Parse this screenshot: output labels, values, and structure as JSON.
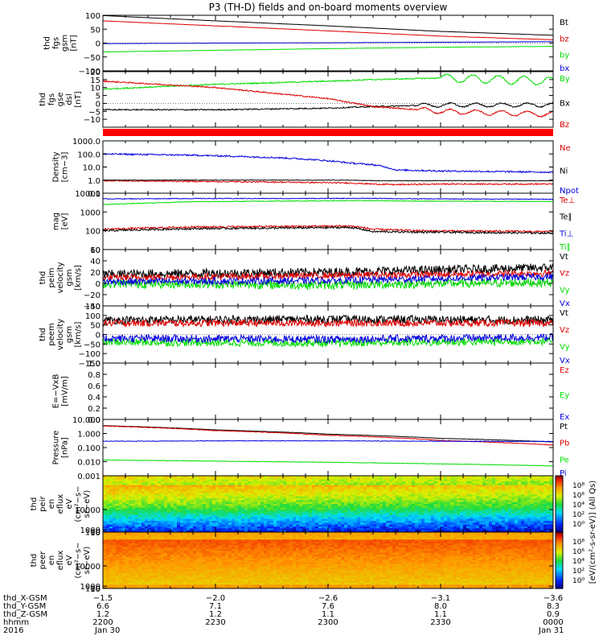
{
  "title": "P3 (TH-D) fields and on-board moments overview",
  "colors": {
    "black": "#000000",
    "red": "#dd0000",
    "green": "#00dd00",
    "blue": "#0000dd",
    "thick_red": "#ff0000"
  },
  "chart_data": [
    {
      "id": "fgs-gsm",
      "type": "line",
      "ylabel": [
        "thd",
        "fgs",
        "gsm",
        "[nT]"
      ],
      "ylim": [
        -100,
        100
      ],
      "yticks": [
        "100",
        "50",
        "0",
        "−50",
        "−100"
      ],
      "ytick_values": [
        100,
        50,
        0,
        -50,
        -100
      ],
      "x": [
        0,
        0.25,
        0.5,
        0.75,
        1
      ],
      "series": [
        {
          "name": "Bt",
          "color": "black",
          "values": [
            99,
            80,
            62,
            42,
            28
          ],
          "noise": 0.3
        },
        {
          "name": "bz",
          "color": "red",
          "values": [
            80,
            62,
            44,
            25,
            12
          ],
          "noise": 0.5
        },
        {
          "name": "by",
          "color": "green",
          "values": [
            -32,
            -26,
            -20,
            -15,
            -12
          ],
          "noise": 0.5
        },
        {
          "name": "bx",
          "color": "blue",
          "values": [
            -2,
            0,
            1,
            3,
            5
          ],
          "noise": 0.5
        }
      ]
    },
    {
      "id": "fgs-gse-dsl",
      "type": "line",
      "ylabel": [
        "thd",
        "fgs",
        "gse",
        "dsl",
        "[nT]"
      ],
      "ylim": [
        -15,
        20
      ],
      "yticks": [
        "20",
        "15",
        "10",
        "5",
        "0",
        "−5",
        "−10"
      ],
      "ytick_values": [
        20,
        15,
        10,
        5,
        0,
        -5,
        -10
      ],
      "x": [
        0,
        0.25,
        0.5,
        0.6,
        0.75,
        1
      ],
      "series": [
        {
          "name": "By",
          "color": "green",
          "values": [
            9,
            12,
            14,
            15,
            16,
            14
          ],
          "noise": 0.4,
          "wave_from": 0.75,
          "wave_amp": 2.5
        },
        {
          "name": "Bx",
          "color": "black",
          "values": [
            -4,
            -4,
            -3,
            -2,
            -1,
            -1
          ],
          "noise": 0.4,
          "wave_from": 0.7,
          "wave_amp": 1.2
        },
        {
          "name": "Bz",
          "color": "red",
          "values": [
            14,
            10,
            3,
            -2,
            -5,
            -7
          ],
          "noise": 0.4,
          "wave_from": 0.7,
          "wave_amp": 1.5
        }
      ]
    },
    {
      "id": "density",
      "type": "line",
      "log": true,
      "ylabel": [
        "Density",
        "[cm−3]"
      ],
      "ylim": [
        0.1,
        1000
      ],
      "yticks": [
        "1000.0",
        "100.0",
        "10.0",
        "1.0",
        "0.1"
      ],
      "ytick_values": [
        1000,
        100,
        10,
        1,
        0.1
      ],
      "x": [
        0,
        0.2,
        0.4,
        0.55,
        0.6,
        0.65,
        0.75,
        1
      ],
      "series": [
        {
          "name": "Ne",
          "color": "red",
          "values": [
            0.9,
            0.8,
            0.7,
            0.6,
            0.5,
            0.45,
            0.5,
            0.5
          ],
          "noise": 0.05
        },
        {
          "name": "Ni",
          "color": "black",
          "values": [
            1.0,
            1.0,
            1.0,
            1.0,
            0.9,
            0.9,
            0.9,
            0.9
          ],
          "noise": 0.02
        },
        {
          "name": "Npot",
          "color": "blue",
          "values": [
            100,
            80,
            50,
            20,
            15,
            6,
            5,
            4
          ],
          "noise": 0.06
        }
      ]
    },
    {
      "id": "temperature",
      "type": "line",
      "log": true,
      "ylabel": [
        "mag ",
        "[eV]"
      ],
      "ylim": [
        10,
        10000
      ],
      "yticks": [
        "10000",
        "1000",
        "100",
        "10"
      ],
      "ytick_values": [
        10000,
        1000,
        100,
        10
      ],
      "x": [
        0,
        0.2,
        0.4,
        0.55,
        0.6,
        0.7,
        1
      ],
      "series": [
        {
          "name": "Te⊥",
          "color": "red",
          "values": [
            120,
            160,
            170,
            180,
            120,
            100,
            90
          ],
          "noise": 0.05
        },
        {
          "name": "Te∥",
          "color": "black",
          "values": [
            100,
            130,
            140,
            150,
            90,
            85,
            75
          ],
          "noise": 0.05
        },
        {
          "name": "Ti⊥",
          "color": "blue",
          "values": [
            5000,
            5200,
            5200,
            5300,
            5300,
            5000,
            4800
          ],
          "noise": 0.02
        },
        {
          "name": "Ti∥",
          "color": "green",
          "values": [
            2500,
            3500,
            3800,
            4000,
            4000,
            3800,
            3600
          ],
          "noise": 0.02
        }
      ]
    },
    {
      "id": "peim-velocity",
      "type": "line",
      "ylabel": [
        "thd",
        "peim",
        "velocity",
        "gsm",
        "[km/s]"
      ],
      "ylim": [
        -40,
        60
      ],
      "yticks": [
        "60",
        "40",
        "20",
        "0",
        "−20",
        "−40"
      ],
      "ytick_values": [
        60,
        40,
        20,
        0,
        -20,
        -40
      ],
      "x": [
        0,
        0.5,
        1
      ],
      "series": [
        {
          "name": "Vt",
          "color": "black",
          "values": [
            16,
            20,
            28
          ],
          "noise": 8
        },
        {
          "name": "Vz",
          "color": "red",
          "values": [
            10,
            14,
            18
          ],
          "noise": 6
        },
        {
          "name": "Vy",
          "color": "green",
          "values": [
            0,
            -3,
            2
          ],
          "noise": 8
        },
        {
          "name": "Vx",
          "color": "blue",
          "values": [
            3,
            5,
            12
          ],
          "noise": 6
        }
      ]
    },
    {
      "id": "peem-velocity",
      "type": "line",
      "ylabel": [
        "thd",
        "peem",
        "velocity",
        "gsm",
        "[km/s]"
      ],
      "ylim": [
        -150,
        150
      ],
      "yticks": [
        "150",
        "100",
        "50",
        "0",
        "−50",
        "−100",
        "−150"
      ],
      "ytick_values": [
        150,
        100,
        50,
        0,
        -50,
        -100,
        -150
      ],
      "x": [
        0,
        0.5,
        1
      ],
      "series": [
        {
          "name": "Vt",
          "color": "black",
          "values": [
            75,
            80,
            75
          ],
          "noise": 22
        },
        {
          "name": "Vz",
          "color": "red",
          "values": [
            60,
            60,
            60
          ],
          "noise": 18
        },
        {
          "name": "Vy",
          "color": "green",
          "values": [
            -40,
            -45,
            -35
          ],
          "noise": 20
        },
        {
          "name": "Vx",
          "color": "blue",
          "values": [
            -20,
            -25,
            -15
          ],
          "noise": 20
        }
      ]
    },
    {
      "id": "efield",
      "type": "line",
      "ylabel": [
        "E=−VxB",
        "[mV/m]"
      ],
      "ylim": [
        0,
        1
      ],
      "yticks": [
        "1.0",
        "0.8",
        "0.6",
        "0.4",
        "0.2",
        "0.0"
      ],
      "ytick_values": [
        1,
        0.8,
        0.6,
        0.4,
        0.2,
        0
      ],
      "x": [],
      "series": [
        {
          "name": "Ez",
          "color": "red",
          "values": []
        },
        {
          "name": "Ey",
          "color": "green",
          "values": []
        },
        {
          "name": "Ex",
          "color": "blue",
          "values": []
        }
      ]
    },
    {
      "id": "pressure",
      "type": "line",
      "log": true,
      "ylabel": [
        "Pressure",
        "[nPa]"
      ],
      "ylim": [
        0.001,
        10
      ],
      "yticks": [
        "10.000",
        "1.000",
        "0.100",
        "0.010",
        "0.001"
      ],
      "ytick_values": [
        10,
        1,
        0.1,
        0.01,
        0.001
      ],
      "x": [
        0,
        0.25,
        0.5,
        0.75,
        1
      ],
      "series": [
        {
          "name": "Pt",
          "color": "black",
          "values": [
            3.6,
            1.8,
            0.9,
            0.45,
            0.25
          ],
          "noise": 0.01
        },
        {
          "name": "Pb",
          "color": "red",
          "values": [
            3.4,
            1.6,
            0.75,
            0.32,
            0.15
          ],
          "noise": 0.02
        },
        {
          "name": "Pe",
          "color": "green",
          "values": [
            0.013,
            0.011,
            0.009,
            0.007,
            0.005
          ],
          "noise": 0.02
        },
        {
          "name": "Pi",
          "color": "blue",
          "values": [
            0.28,
            0.3,
            0.3,
            0.28,
            0.27
          ],
          "noise": 0.02
        }
      ]
    },
    {
      "id": "peir-spectrogram",
      "type": "heatmap",
      "ylabel": [
        "thd",
        "peir",
        "en",
        "eflux",
        "eV",
        "(cm²−s−",
        "sr−eV)"
      ],
      "yticks": [
        "10000",
        "1000",
        "100",
        "10"
      ],
      "ytick_values": [
        10000,
        1000,
        100,
        10
      ],
      "ylim": [
        7,
        25000
      ]
    },
    {
      "id": "peer-spectrogram",
      "type": "heatmap",
      "ylabel": [
        "thd",
        "peer",
        "en",
        "eflux",
        "eV",
        "(cm²−s−",
        "sr−eV)"
      ],
      "yticks": [
        "10000",
        "1000",
        "100",
        "10"
      ],
      "ytick_values": [
        10000,
        1000,
        100,
        10
      ],
      "ylim": [
        7,
        25000
      ]
    }
  ],
  "colorbar": {
    "ticks": [
      "10⁸",
      "10⁶",
      "10⁴",
      "10²",
      "10⁰"
    ],
    "label": "[eV/(cm²-s-sr-eV)] (All Qs)"
  },
  "xaxis": {
    "rows": [
      {
        "name": "thd_X-GSM",
        "values": [
          "−1.5",
          "−2.0",
          "−2.6",
          "−3.1",
          "−3.6"
        ]
      },
      {
        "name": "thd_Y-GSM",
        "values": [
          "6.6",
          "7.1",
          "7.6",
          "8.0",
          "8.3"
        ]
      },
      {
        "name": "thd_Z-GSM",
        "values": [
          "1.2",
          "1.2",
          "1.1",
          "1.1",
          "0.9"
        ]
      },
      {
        "name": "hhmm",
        "values": [
          "2200",
          "2230",
          "2300",
          "2330",
          "0000"
        ]
      }
    ],
    "year": "2016",
    "start_date": "Jan 30",
    "end_date": "Jan 31"
  }
}
